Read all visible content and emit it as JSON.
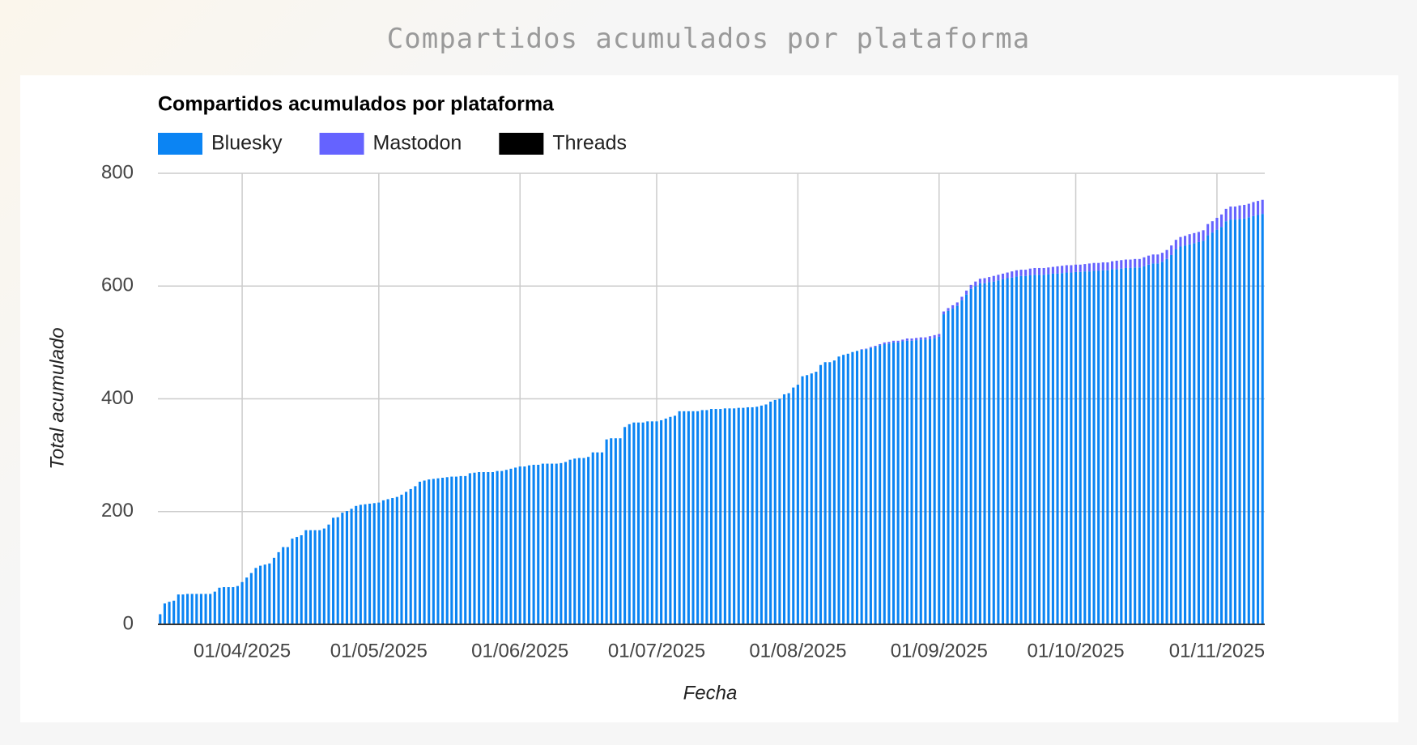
{
  "page_title": "Compartidos acumulados por plataforma",
  "chart_data": {
    "type": "stacked-bar",
    "title": "Compartidos acumulados por plataforma",
    "x_label": "Fecha",
    "y_label": "Total acumulado",
    "x": [
      "14/03/2025",
      "15/03/2025",
      "16/03/2025",
      "17/03/2025",
      "18/03/2025",
      "19/03/2025",
      "20/03/2025",
      "21/03/2025",
      "22/03/2025",
      "23/03/2025",
      "24/03/2025",
      "25/03/2025",
      "26/03/2025",
      "27/03/2025",
      "28/03/2025",
      "29/03/2025",
      "30/03/2025",
      "31/03/2025",
      "01/04/2025",
      "02/04/2025",
      "03/04/2025",
      "04/04/2025",
      "05/04/2025",
      "06/04/2025",
      "07/04/2025",
      "08/04/2025",
      "09/04/2025",
      "10/04/2025",
      "11/04/2025",
      "12/04/2025",
      "13/04/2025",
      "14/04/2025",
      "15/04/2025",
      "16/04/2025",
      "17/04/2025",
      "18/04/2025",
      "19/04/2025",
      "20/04/2025",
      "21/04/2025",
      "22/04/2025",
      "23/04/2025",
      "24/04/2025",
      "25/04/2025",
      "26/04/2025",
      "27/04/2025",
      "28/04/2025",
      "29/04/2025",
      "30/04/2025",
      "01/05/2025",
      "02/05/2025",
      "03/05/2025",
      "04/05/2025",
      "05/05/2025",
      "06/05/2025",
      "07/05/2025",
      "08/05/2025",
      "09/05/2025",
      "10/05/2025",
      "11/05/2025",
      "12/05/2025",
      "13/05/2025",
      "14/05/2025",
      "15/05/2025",
      "16/05/2025",
      "17/05/2025",
      "18/05/2025",
      "19/05/2025",
      "20/05/2025",
      "21/05/2025",
      "22/05/2025",
      "23/05/2025",
      "24/05/2025",
      "25/05/2025",
      "26/05/2025",
      "27/05/2025",
      "28/05/2025",
      "29/05/2025",
      "30/05/2025",
      "31/05/2025",
      "01/06/2025",
      "02/06/2025",
      "03/06/2025",
      "04/06/2025",
      "05/06/2025",
      "06/06/2025",
      "07/06/2025",
      "08/06/2025",
      "09/06/2025",
      "10/06/2025",
      "11/06/2025",
      "12/06/2025",
      "13/06/2025",
      "14/06/2025",
      "15/06/2025",
      "16/06/2025",
      "17/06/2025",
      "18/06/2025",
      "19/06/2025",
      "20/06/2025",
      "21/06/2025",
      "22/06/2025",
      "23/06/2025",
      "24/06/2025",
      "25/06/2025",
      "26/06/2025",
      "27/06/2025",
      "28/06/2025",
      "29/06/2025",
      "30/06/2025",
      "01/07/2025",
      "02/07/2025",
      "03/07/2025",
      "04/07/2025",
      "05/07/2025",
      "06/07/2025",
      "07/07/2025",
      "08/07/2025",
      "09/07/2025",
      "10/07/2025",
      "11/07/2025",
      "12/07/2025",
      "13/07/2025",
      "14/07/2025",
      "15/07/2025",
      "16/07/2025",
      "17/07/2025",
      "18/07/2025",
      "19/07/2025",
      "20/07/2025",
      "21/07/2025",
      "22/07/2025",
      "23/07/2025",
      "24/07/2025",
      "25/07/2025",
      "26/07/2025",
      "27/07/2025",
      "28/07/2025",
      "29/07/2025",
      "30/07/2025",
      "31/07/2025",
      "01/08/2025",
      "02/08/2025",
      "03/08/2025",
      "04/08/2025",
      "05/08/2025",
      "06/08/2025",
      "07/08/2025",
      "08/08/2025",
      "09/08/2025",
      "10/08/2025",
      "11/08/2025",
      "12/08/2025",
      "13/08/2025",
      "14/08/2025",
      "15/08/2025",
      "16/08/2025",
      "17/08/2025",
      "18/08/2025",
      "19/08/2025",
      "20/08/2025",
      "21/08/2025",
      "22/08/2025",
      "23/08/2025",
      "24/08/2025",
      "25/08/2025",
      "26/08/2025",
      "27/08/2025",
      "28/08/2025",
      "29/08/2025",
      "30/08/2025",
      "31/08/2025",
      "01/09/2025",
      "02/09/2025",
      "03/09/2025",
      "04/09/2025",
      "05/09/2025",
      "06/09/2025",
      "07/09/2025",
      "08/09/2025",
      "09/09/2025",
      "10/09/2025",
      "11/09/2025",
      "12/09/2025",
      "13/09/2025",
      "14/09/2025",
      "15/09/2025",
      "16/09/2025",
      "17/09/2025",
      "18/09/2025",
      "19/09/2025",
      "20/09/2025",
      "21/09/2025",
      "22/09/2025",
      "23/09/2025",
      "24/09/2025",
      "25/09/2025",
      "26/09/2025",
      "27/09/2025",
      "28/09/2025",
      "29/09/2025",
      "30/09/2025",
      "01/10/2025",
      "02/10/2025",
      "03/10/2025",
      "04/10/2025",
      "05/10/2025",
      "06/10/2025",
      "07/10/2025",
      "08/10/2025",
      "09/10/2025",
      "10/10/2025",
      "11/10/2025",
      "12/10/2025",
      "13/10/2025",
      "14/10/2025",
      "15/10/2025",
      "16/10/2025",
      "17/10/2025",
      "18/10/2025",
      "19/10/2025",
      "20/10/2025",
      "21/10/2025",
      "22/10/2025",
      "23/10/2025",
      "24/10/2025",
      "25/10/2025",
      "26/10/2025",
      "27/10/2025",
      "28/10/2025",
      "29/10/2025",
      "30/10/2025",
      "31/10/2025",
      "01/11/2025",
      "02/11/2025",
      "03/11/2025",
      "04/11/2025",
      "05/11/2025",
      "06/11/2025",
      "07/11/2025",
      "08/11/2025",
      "09/11/2025",
      "10/11/2025",
      "11/11/2025"
    ],
    "xticks": [
      "01/04/2025",
      "01/05/2025",
      "01/06/2025",
      "01/07/2025",
      "01/08/2025",
      "01/09/2025",
      "01/10/2025",
      "01/11/2025"
    ],
    "series": [
      {
        "name": "Bluesky",
        "color": "#0b84f3",
        "values": [
          18,
          37,
          40,
          42,
          53,
          53,
          54,
          54,
          54,
          54,
          54,
          54,
          58,
          65,
          66,
          66,
          66,
          68,
          75,
          83,
          91,
          100,
          104,
          106,
          108,
          118,
          128,
          137,
          137,
          152,
          155,
          158,
          167,
          167,
          167,
          167,
          170,
          177,
          189,
          190,
          198,
          201,
          205,
          210,
          212,
          213,
          214,
          215,
          216,
          220,
          222,
          224,
          226,
          230,
          235,
          240,
          245,
          253,
          255,
          257,
          258,
          259,
          260,
          261,
          262,
          262,
          263,
          263,
          268,
          269,
          270,
          270,
          270,
          270,
          272,
          272,
          274,
          276,
          278,
          280,
          280,
          282,
          283,
          283,
          285,
          285,
          285,
          285,
          286,
          288,
          292,
          294,
          295,
          295,
          297,
          305,
          305,
          305,
          328,
          330,
          330,
          330,
          350,
          355,
          358,
          358,
          358,
          360,
          360,
          360,
          362,
          365,
          368,
          370,
          378,
          378,
          378,
          378,
          378,
          380,
          380,
          382,
          382,
          382,
          383,
          383,
          383,
          384,
          384,
          385,
          385,
          386,
          388,
          390,
          395,
          398,
          400,
          408,
          410,
          420,
          425,
          440,
          442,
          445,
          448,
          460,
          465,
          465,
          468,
          475,
          478,
          480,
          483,
          485,
          487,
          488,
          490,
          492,
          495,
          497,
          498,
          500,
          500,
          502,
          503,
          503,
          504,
          505,
          505,
          506,
          508,
          510,
          550,
          556,
          560,
          565,
          575,
          585,
          595,
          600,
          605,
          605,
          607,
          608,
          610,
          612,
          614,
          615,
          617,
          618,
          618,
          619,
          620,
          620,
          620,
          621,
          622,
          622,
          623,
          624,
          624,
          625,
          625,
          626,
          626,
          627,
          627,
          628,
          628,
          630,
          630,
          631,
          632,
          632,
          633,
          633,
          635,
          638,
          640,
          640,
          643,
          648,
          655,
          665,
          670,
          672,
          674,
          676,
          678,
          680,
          690,
          695,
          700,
          705,
          715,
          718,
          718,
          719,
          720,
          722,
          724,
          726,
          728
        ]
      },
      {
        "name": "Mastodon",
        "color": "#6563ff",
        "values": [
          0,
          0,
          0,
          0,
          0,
          0,
          0,
          0,
          0,
          0,
          0,
          0,
          0,
          0,
          0,
          0,
          0,
          0,
          0,
          0,
          0,
          0,
          0,
          0,
          0,
          0,
          0,
          0,
          0,
          0,
          0,
          0,
          0,
          0,
          0,
          0,
          0,
          0,
          0,
          0,
          0,
          0,
          0,
          0,
          0,
          0,
          0,
          0,
          0,
          0,
          0,
          0,
          0,
          0,
          0,
          0,
          0,
          0,
          0,
          0,
          0,
          0,
          0,
          0,
          0,
          0,
          0,
          0,
          0,
          0,
          0,
          0,
          0,
          0,
          0,
          0,
          0,
          0,
          0,
          0,
          0,
          0,
          0,
          0,
          0,
          0,
          0,
          0,
          0,
          0,
          0,
          0,
          0,
          0,
          0,
          0,
          0,
          0,
          0,
          0,
          0,
          0,
          0,
          0,
          0,
          0,
          0,
          0,
          0,
          0,
          0,
          0,
          0,
          0,
          0,
          0,
          0,
          0,
          0,
          0,
          0,
          0,
          0,
          0,
          0,
          0,
          0,
          0,
          0,
          0,
          0,
          0,
          0,
          0,
          0,
          0,
          0,
          0,
          0,
          0,
          0,
          0,
          0,
          0,
          0,
          0,
          0,
          0,
          0,
          0,
          0,
          0,
          0,
          0,
          1,
          1,
          2,
          2,
          2,
          3,
          3,
          3,
          3,
          3,
          4,
          4,
          4,
          4,
          4,
          5,
          5,
          5,
          5,
          5,
          6,
          6,
          6,
          7,
          7,
          8,
          8,
          9,
          9,
          10,
          10,
          10,
          10,
          11,
          11,
          11,
          11,
          12,
          12,
          12,
          12,
          12,
          12,
          13,
          13,
          13,
          13,
          13,
          13,
          13,
          14,
          14,
          14,
          14,
          14,
          14,
          15,
          15,
          15,
          15,
          15,
          15,
          16,
          16,
          16,
          16,
          16,
          16,
          17,
          17,
          17,
          17,
          18,
          18,
          18,
          19,
          20,
          20,
          21,
          22,
          22,
          23,
          23,
          24,
          24,
          24,
          25,
          25,
          25
        ]
      },
      {
        "name": "Threads",
        "color": "#000000",
        "values": [
          0,
          0,
          0,
          0,
          0,
          0,
          0,
          0,
          0,
          0,
          0,
          0,
          0,
          0,
          0,
          0,
          0,
          0,
          0,
          0,
          0,
          0,
          0,
          0,
          0,
          0,
          0,
          0,
          0,
          0,
          0,
          0,
          0,
          0,
          0,
          0,
          0,
          0,
          0,
          0,
          0,
          0,
          0,
          0,
          0,
          0,
          0,
          0,
          0,
          0,
          0,
          0,
          0,
          0,
          0,
          0,
          0,
          0,
          0,
          0,
          0,
          0,
          0,
          0,
          0,
          0,
          0,
          0,
          0,
          0,
          0,
          0,
          0,
          0,
          0,
          0,
          0,
          0,
          0,
          0,
          0,
          0,
          0,
          0,
          0,
          0,
          0,
          0,
          0,
          0,
          0,
          0,
          0,
          0,
          0,
          0,
          0,
          0,
          0,
          0,
          0,
          0,
          0,
          0,
          0,
          0,
          0,
          0,
          0,
          0,
          0,
          0,
          0,
          0,
          0,
          0,
          0,
          0,
          0,
          0,
          0,
          0,
          0,
          0,
          0,
          0,
          0,
          0,
          0,
          0,
          0,
          0,
          0,
          0,
          0,
          0,
          0,
          0,
          0,
          0,
          0,
          0,
          0,
          0,
          0,
          0,
          0,
          0,
          0,
          0,
          0,
          0,
          0,
          0,
          0,
          0,
          0,
          0,
          0,
          0,
          0,
          0,
          0,
          0,
          0,
          0,
          0,
          0,
          0,
          0,
          0,
          0,
          0,
          0,
          0,
          0,
          0,
          0,
          0,
          0,
          0,
          0,
          0,
          0,
          0,
          0,
          0,
          0,
          0,
          0,
          0,
          0,
          0,
          0,
          0,
          0,
          0,
          0,
          0,
          0,
          0,
          0,
          0,
          0,
          0,
          0,
          0,
          0,
          0,
          0,
          0,
          0,
          0,
          0,
          0,
          0,
          0,
          0,
          0,
          0,
          0,
          0,
          0,
          0,
          0,
          0,
          0,
          0,
          0,
          0,
          0,
          0,
          0,
          0,
          0,
          0,
          0,
          0,
          0,
          0,
          0,
          0,
          0
        ]
      }
    ],
    "ylim": [
      0,
      800
    ],
    "yticks": [
      0,
      200,
      400,
      600,
      800
    ],
    "grid": true,
    "legend": "top-left"
  }
}
